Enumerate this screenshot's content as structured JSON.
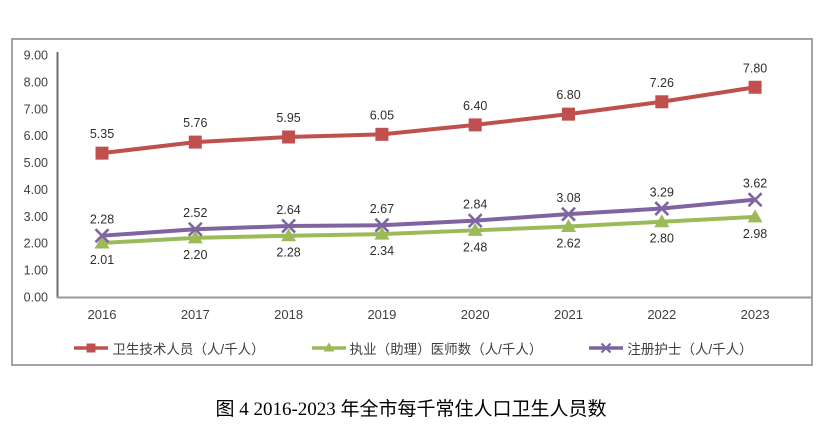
{
  "figure": {
    "caption": "图 4 2016-2023 年全市每千常住人口卫生人员数"
  },
  "chart_data": {
    "type": "line",
    "categories": [
      "2016",
      "2017",
      "2018",
      "2019",
      "2020",
      "2021",
      "2022",
      "2023"
    ],
    "series": [
      {
        "name": "卫生技术人员（人/千人）",
        "marker": "square",
        "color": "#C0504D",
        "label_position": "above",
        "values": [
          5.35,
          5.76,
          5.95,
          6.05,
          6.4,
          6.8,
          7.26,
          7.8
        ]
      },
      {
        "name": "执业（助理）医师数（人/千人）",
        "marker": "triangle",
        "color": "#9BBB59",
        "label_position": "below",
        "values": [
          2.01,
          2.2,
          2.28,
          2.34,
          2.48,
          2.62,
          2.8,
          2.98
        ]
      },
      {
        "name": "注册护士（人/千人）",
        "marker": "x",
        "color": "#8064A2",
        "label_position": "above",
        "values": [
          2.28,
          2.52,
          2.64,
          2.67,
          2.84,
          3.08,
          3.29,
          3.62
        ]
      }
    ],
    "ylim": [
      0,
      9
    ],
    "y_ticks": [
      "0.00",
      "1.00",
      "2.00",
      "3.00",
      "4.00",
      "5.00",
      "6.00",
      "7.00",
      "8.00",
      "9.00"
    ],
    "value_format": "two-decimals",
    "grid": false,
    "legend_position": "bottom",
    "axis_color": "#6e6e6e",
    "baseline_color": "#9a9a9a"
  }
}
